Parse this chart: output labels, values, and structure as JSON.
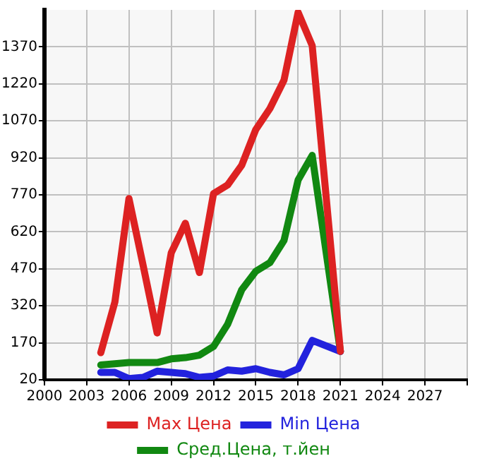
{
  "chart_data": {
    "type": "line",
    "xlim": [
      2000,
      2030
    ],
    "xticks": [
      2000,
      2003,
      2006,
      2009,
      2012,
      2015,
      2018,
      2021,
      2024,
      2027,
      {
        "value": 2030,
        "label": null
      }
    ],
    "ylim": [
      20,
      1520
    ],
    "yticks": [
      20,
      170,
      320,
      470,
      620,
      770,
      920,
      1070,
      1220,
      1370
    ],
    "grid": true,
    "legend": "bottom",
    "marker": "none",
    "line_style": "solid",
    "series": [
      {
        "name": "Max Цена",
        "color": "#dd2222",
        "x": [
          2004,
          2005,
          2006,
          2007,
          2008,
          2009,
          2010,
          2011,
          2012,
          2013,
          2014,
          2015,
          2016,
          2017,
          2018,
          2019,
          2021
        ],
        "values": [
          130,
          335,
          755,
          485,
          210,
          535,
          655,
          455,
          775,
          810,
          890,
          1035,
          1120,
          1235,
          1510,
          1375,
          135
        ]
      },
      {
        "name": "Min Цена",
        "color": "#2222dd",
        "x": [
          2004,
          2005,
          2006,
          2007,
          2008,
          2009,
          2010,
          2011,
          2012,
          2013,
          2014,
          2015,
          2016,
          2017,
          2018,
          2019,
          2021
        ],
        "values": [
          50,
          50,
          25,
          30,
          55,
          50,
          45,
          30,
          35,
          60,
          55,
          65,
          50,
          40,
          65,
          180,
          135
        ]
      },
      {
        "name": "Сред.Цена, т.йен",
        "color": "#118811",
        "x": [
          2004,
          2005,
          2006,
          2007,
          2008,
          2009,
          2010,
          2011,
          2012,
          2013,
          2014,
          2015,
          2016,
          2017,
          2018,
          2019,
          2021
        ],
        "values": [
          80,
          85,
          90,
          90,
          90,
          105,
          110,
          120,
          155,
          245,
          385,
          460,
          495,
          585,
          830,
          930,
          135
        ]
      }
    ]
  }
}
